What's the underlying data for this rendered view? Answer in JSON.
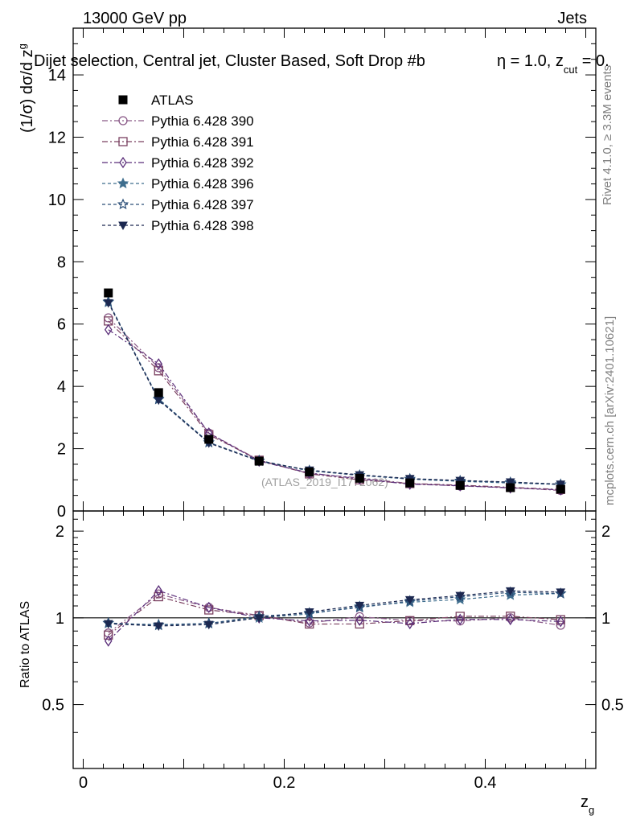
{
  "header": {
    "left": "13000 GeV pp",
    "right": "Jets",
    "title_main": "Dijet selection, Central jet, Cluster Based, Soft Drop #b",
    "title_eta": "η = 1.0, z",
    "title_cut": "cut",
    "title_end": " = 0.",
    "side_rivet": "Rivet 4.1.0, ≥ 3.3M events",
    "side_mcplots": "mcplots.cern.ch [arXiv:2401.10621]",
    "watermark": "(ATLAS_2019_I1772062)"
  },
  "chart_data": {
    "type": "line",
    "main": {
      "ylabel": "(1/σ) dσ/d z",
      "ylabel_sub": "g",
      "ylim": [
        0,
        15.5
      ],
      "yticks": [
        0,
        2,
        4,
        6,
        8,
        10,
        12,
        14
      ],
      "ytick_labels": [
        "0",
        "2",
        "4",
        "6",
        "8",
        "10",
        "12",
        "14"
      ]
    },
    "ratio": {
      "ylabel": "Ratio to ATLAS",
      "ylim": [
        0.3,
        2.35
      ],
      "log": true,
      "yticks": [
        0.5,
        1,
        2
      ],
      "ytick_labels": [
        "0.5",
        "1",
        "2"
      ],
      "ref_line": 1
    },
    "xlabel": "z",
    "xlabel_sub": "g",
    "xlim": [
      -0.01,
      0.51
    ],
    "xticks": [
      0,
      0.2,
      0.4
    ],
    "xtick_labels": [
      "0",
      "0.2",
      "0.4"
    ],
    "x": [
      0.025,
      0.075,
      0.125,
      0.175,
      0.225,
      0.275,
      0.325,
      0.375,
      0.425,
      0.475
    ],
    "data": {
      "name": "ATLAS",
      "values": [
        7.0,
        3.8,
        2.3,
        1.6,
        1.25,
        1.05,
        0.9,
        0.82,
        0.75,
        0.7
      ]
    },
    "series": [
      {
        "name": "Pythia 6.428 390",
        "color": "#8a5a88",
        "marker": "circle-open",
        "dash": "7,3,2,3",
        "values": [
          6.2,
          4.6,
          2.5,
          1.63,
          1.2,
          1.06,
          0.88,
          0.8,
          0.75,
          0.66
        ]
      },
      {
        "name": "Pythia 6.428 391",
        "color": "#7a4060",
        "marker": "square-open",
        "dash": "7,3,2,3",
        "values": [
          6.1,
          4.5,
          2.45,
          1.63,
          1.19,
          1.0,
          0.88,
          0.83,
          0.76,
          0.69
        ]
      },
      {
        "name": "Pythia 6.428 392",
        "color": "#5b2f7a",
        "marker": "diamond-open",
        "dash": "7,3,2,3",
        "values": [
          5.82,
          4.72,
          2.5,
          1.6,
          1.22,
          1.03,
          0.86,
          0.81,
          0.74,
          0.68
        ]
      },
      {
        "name": "Pythia 6.428 396",
        "color": "#3f6e8e",
        "marker": "star-filled",
        "dash": "4,3",
        "values": [
          6.7,
          3.6,
          2.2,
          1.6,
          1.29,
          1.15,
          1.02,
          0.95,
          0.9,
          0.85
        ]
      },
      {
        "name": "Pythia 6.428 397",
        "color": "#2c4f78",
        "marker": "star-open",
        "dash": "4,3",
        "values": [
          6.72,
          3.58,
          2.2,
          1.62,
          1.3,
          1.14,
          1.03,
          0.97,
          0.92,
          0.85
        ]
      },
      {
        "name": "Pythia 6.428 398",
        "color": "#1c2850",
        "marker": "tri-down-filled",
        "dash": "4,3",
        "values": [
          6.68,
          3.56,
          2.18,
          1.6,
          1.31,
          1.16,
          1.04,
          0.98,
          0.93,
          0.86
        ]
      }
    ]
  }
}
